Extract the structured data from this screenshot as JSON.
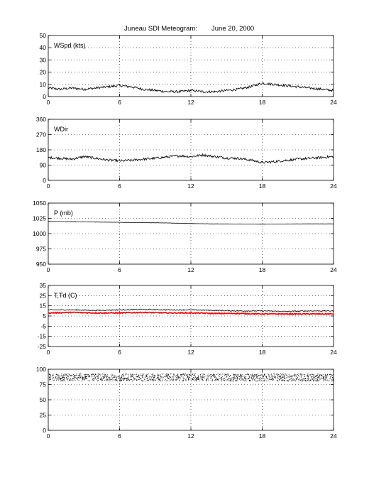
{
  "title": "Juneau SDI Meteogram:",
  "date": "June 20, 2000",
  "chart_data": [
    {
      "type": "line",
      "label": "WSpd (kts)",
      "xlim": [
        0,
        24
      ],
      "xticks": [
        0,
        6,
        12,
        18,
        24
      ],
      "ylim": [
        0,
        50
      ],
      "yticks": [
        0,
        10,
        20,
        30,
        40,
        50
      ],
      "grid": true,
      "series": [
        {
          "color": "#000000",
          "x": [
            0,
            1,
            2,
            3,
            4,
            5,
            6,
            7,
            8,
            9,
            10,
            11,
            12,
            13,
            14,
            15,
            16,
            17,
            18,
            19,
            20,
            21,
            22,
            23,
            24
          ],
          "y": [
            7,
            6,
            7,
            6,
            7,
            8,
            9,
            8,
            6,
            5,
            4,
            4,
            5,
            4,
            4,
            5,
            6,
            8,
            11,
            10,
            9,
            8,
            7,
            6,
            5
          ]
        }
      ]
    },
    {
      "type": "line",
      "label": "WDir",
      "xlim": [
        0,
        24
      ],
      "xticks": [
        0,
        6,
        12,
        18,
        24
      ],
      "ylim": [
        0,
        360
      ],
      "yticks": [
        0,
        90,
        180,
        270,
        360
      ],
      "grid": true,
      "series": [
        {
          "color": "#000000",
          "x": [
            0,
            1,
            2,
            3,
            4,
            5,
            6,
            7,
            8,
            9,
            10,
            11,
            12,
            13,
            14,
            15,
            16,
            17,
            18,
            19,
            20,
            21,
            22,
            23,
            24
          ],
          "y": [
            135,
            130,
            125,
            140,
            130,
            120,
            115,
            118,
            125,
            130,
            138,
            145,
            140,
            150,
            140,
            132,
            130,
            120,
            105,
            110,
            118,
            125,
            130,
            135,
            140
          ]
        }
      ]
    },
    {
      "type": "line",
      "label": "P (mb)",
      "xlim": [
        0,
        24
      ],
      "xticks": [
        0,
        6,
        12,
        18,
        24
      ],
      "ylim": [
        950,
        1050
      ],
      "yticks": [
        950,
        975,
        1000,
        1025,
        1050
      ],
      "grid": true,
      "series": [
        {
          "color": "#000000",
          "x": [
            0,
            2,
            4,
            6,
            8,
            10,
            12,
            14,
            16,
            18,
            20,
            22,
            24
          ],
          "y": [
            1020,
            1019.5,
            1019,
            1018.5,
            1018,
            1017.5,
            1016.5,
            1016,
            1015.8,
            1015.5,
            1015.8,
            1016,
            1016
          ]
        }
      ]
    },
    {
      "type": "line",
      "label": "T,Td (C)",
      "xlim": [
        0,
        24
      ],
      "xticks": [
        0,
        6,
        12,
        18,
        24
      ],
      "ylim": [
        -25,
        35
      ],
      "yticks": [
        -25,
        -15,
        -5,
        5,
        15,
        25,
        35
      ],
      "grid": true,
      "series": [
        {
          "color": "#000000",
          "x": [
            0,
            2,
            4,
            6,
            8,
            10,
            12,
            14,
            16,
            18,
            20,
            22,
            24
          ],
          "y": [
            11,
            11,
            10.5,
            11,
            11.5,
            11,
            11,
            10.5,
            10,
            10,
            9.5,
            10,
            10
          ]
        },
        {
          "color": "#ff0000",
          "x": [
            0,
            2,
            4,
            6,
            8,
            10,
            12,
            14,
            16,
            18,
            20,
            22,
            24
          ],
          "y": [
            8,
            8.5,
            8,
            8,
            8.5,
            8,
            8,
            7.5,
            7.5,
            7,
            7,
            7,
            7
          ]
        }
      ]
    },
    {
      "type": "scatter",
      "label": "",
      "xlim": [
        0,
        24
      ],
      "xticks": [
        0,
        6,
        12,
        18,
        24
      ],
      "ylim": [
        0,
        100
      ],
      "yticks": [
        0,
        25,
        50,
        75,
        100
      ],
      "grid": true,
      "series": [
        {
          "color": "#000000",
          "x": [
            0,
            24
          ],
          "y": [
            87,
            87
          ],
          "spread": 6
        }
      ]
    }
  ]
}
